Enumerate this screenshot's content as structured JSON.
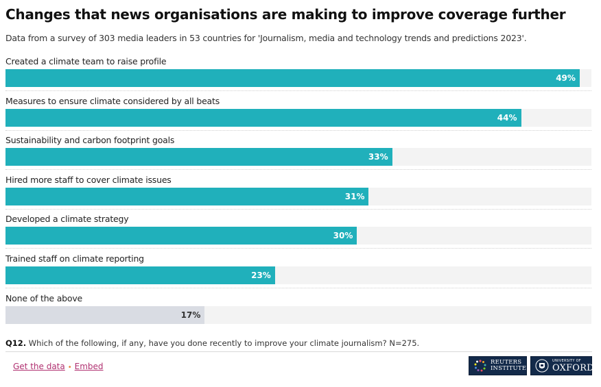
{
  "header": {
    "title": "Changes that news organisations are making to improve coverage further",
    "subtitle": "Data from a survey of 303 media leaders in 53 countries for 'Journalism, media and technology trends and predictions 2023'."
  },
  "chart_data": {
    "type": "bar",
    "orientation": "horizontal",
    "title": "Changes that news organisations are making to improve coverage further",
    "categories": [
      "Created a climate team to raise profile",
      "Measures to ensure climate considered by all beats",
      "Sustainability and carbon footprint goals",
      "Hired more staff to cover climate issues",
      "Developed a climate strategy",
      "Trained staff on climate reporting",
      "None of the above"
    ],
    "values": [
      49,
      44,
      33,
      31,
      30,
      23,
      17
    ],
    "labels": [
      "49%",
      "44%",
      "33%",
      "31%",
      "30%",
      "23%",
      "17%"
    ],
    "highlight": [
      true,
      true,
      true,
      true,
      true,
      true,
      false
    ],
    "xlim": [
      0,
      50
    ],
    "unit": "%",
    "grid": false,
    "colors": {
      "primary": "#20b0bb",
      "secondary": "#d9dce3",
      "track": "#f3f3f3"
    }
  },
  "footer": {
    "question_label": "Q12.",
    "question_text": " Which of the following, if any, have you done recently to improve your climate journalism? N=275.",
    "get_data_link": "Get the data",
    "separator": "•",
    "embed_link": "Embed",
    "logos": {
      "reuters_line1": "REUTERS",
      "reuters_line2": "INSTITUTE",
      "oxford_line1": "UNIVERSITY OF",
      "oxford_line2": "OXFORD"
    }
  }
}
